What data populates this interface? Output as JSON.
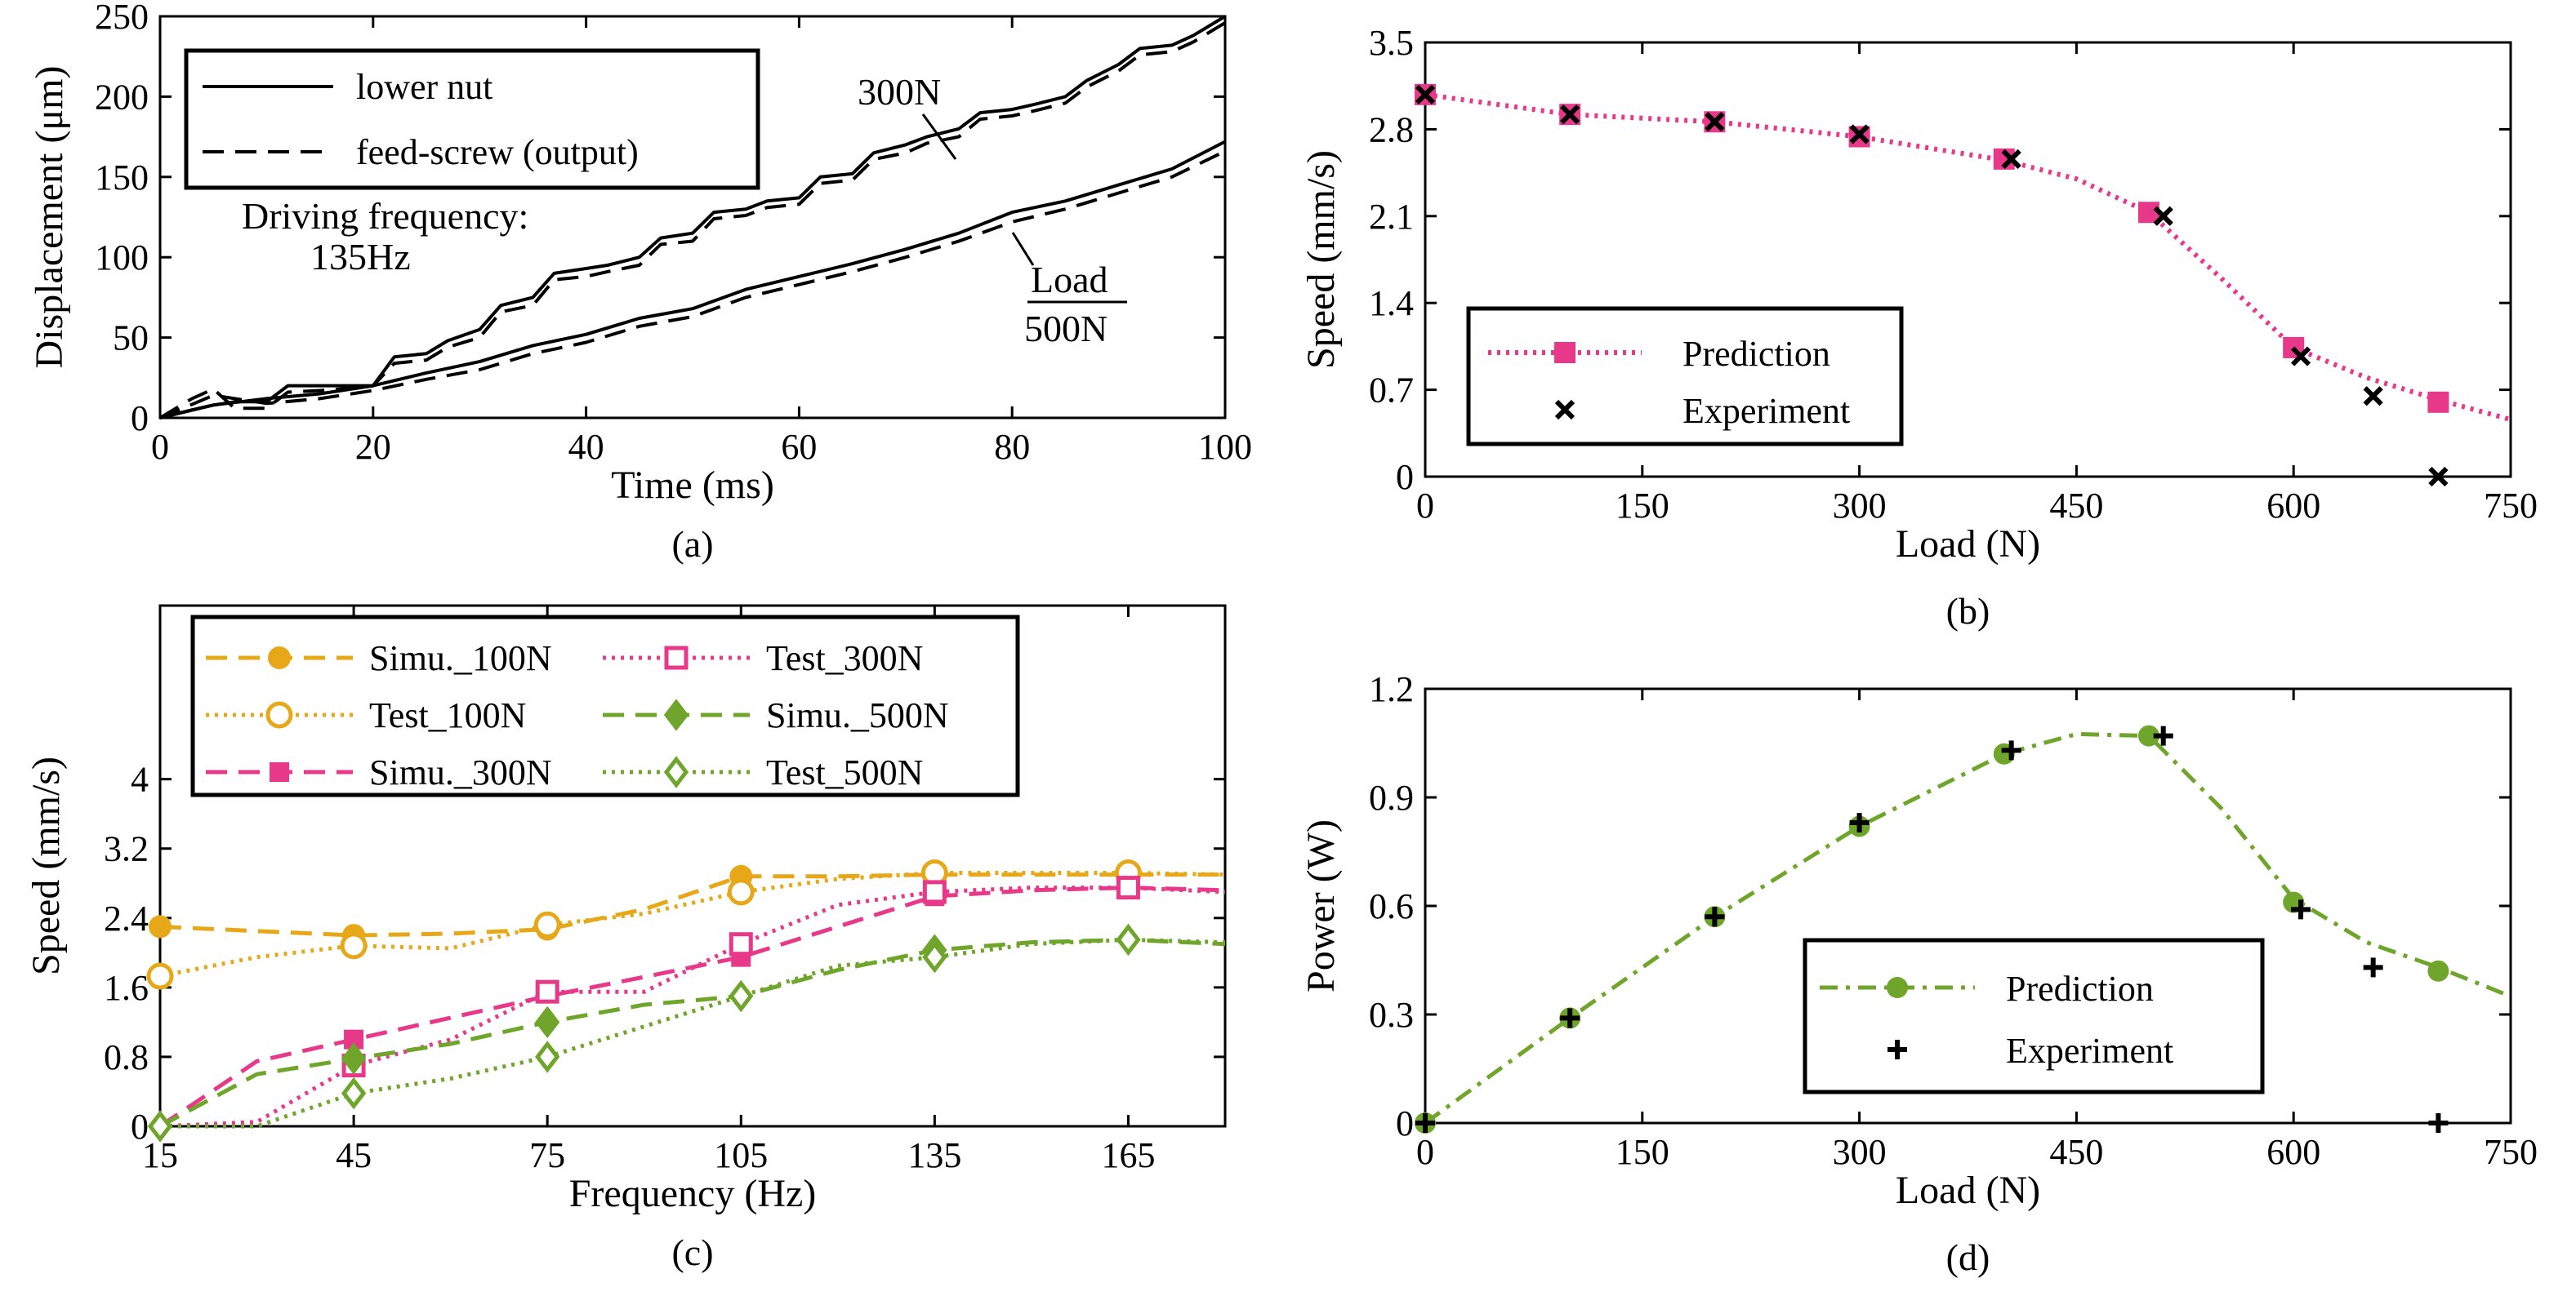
{
  "chart_data": [
    {
      "id": "a",
      "type": "line",
      "caption": "(a)",
      "xlabel": "Time (ms)",
      "ylabel": "Displacement (μm)",
      "xlim": [
        0,
        100
      ],
      "ylim": [
        0,
        250
      ],
      "xticks": [
        0,
        20,
        40,
        60,
        80,
        100
      ],
      "yticks": [
        0,
        50,
        100,
        150,
        200,
        250
      ],
      "legend_position": "top-left",
      "legend": [
        "lower nut",
        "feed-screw (output)"
      ],
      "annotations": {
        "driving_line1": "Driving frequency:",
        "driving_line2": "135Hz",
        "load300": "300N",
        "load500_top": "Load",
        "load500_bottom": "500N"
      },
      "series": [
        {
          "name": "lower nut @ 300N",
          "style": "solid",
          "x": [
            0,
            3,
            5,
            7,
            10,
            12,
            15,
            17,
            20,
            22,
            25,
            27,
            30,
            32,
            35,
            37,
            40,
            42,
            45,
            47,
            50,
            52,
            55,
            57,
            60,
            62,
            65,
            67,
            70,
            72,
            75,
            77,
            80,
            82,
            85,
            87,
            90,
            92,
            95,
            97,
            100
          ],
          "values": [
            0,
            5,
            8,
            10,
            10,
            20,
            20,
            20,
            20,
            38,
            40,
            48,
            55,
            70,
            75,
            90,
            93,
            95,
            100,
            112,
            115,
            128,
            130,
            135,
            137,
            150,
            152,
            165,
            170,
            175,
            180,
            190,
            192,
            195,
            200,
            210,
            220,
            230,
            232,
            238,
            250
          ]
        },
        {
          "name": "feed-screw @ 300N",
          "style": "dashed",
          "x": [
            0,
            3,
            5,
            7,
            10,
            12,
            15,
            17,
            20,
            22,
            25,
            27,
            30,
            32,
            35,
            37,
            40,
            42,
            45,
            47,
            50,
            52,
            55,
            57,
            60,
            62,
            65,
            67,
            70,
            72,
            75,
            77,
            80,
            82,
            85,
            87,
            90,
            92,
            95,
            97,
            100
          ],
          "values": [
            0,
            12,
            18,
            6,
            6,
            16,
            17,
            18,
            20,
            34,
            36,
            44,
            50,
            66,
            70,
            86,
            88,
            91,
            95,
            108,
            110,
            124,
            126,
            131,
            133,
            146,
            148,
            161,
            165,
            171,
            175,
            186,
            188,
            191,
            196,
            206,
            216,
            226,
            228,
            234,
            246
          ]
        },
        {
          "name": "lower nut @ 500N",
          "style": "solid",
          "x": [
            0,
            5,
            10,
            15,
            20,
            25,
            30,
            35,
            40,
            45,
            50,
            55,
            60,
            65,
            70,
            75,
            80,
            85,
            90,
            95,
            100
          ],
          "values": [
            0,
            8,
            12,
            15,
            20,
            28,
            35,
            45,
            52,
            62,
            68,
            80,
            88,
            96,
            105,
            115,
            128,
            135,
            145,
            155,
            172
          ]
        },
        {
          "name": "feed-screw @ 500N",
          "style": "dashed",
          "x": [
            0,
            5,
            10,
            15,
            20,
            25,
            30,
            35,
            40,
            45,
            50,
            55,
            60,
            65,
            70,
            75,
            80,
            85,
            90,
            95,
            100
          ],
          "values": [
            0,
            14,
            9,
            12,
            17,
            24,
            30,
            40,
            47,
            57,
            63,
            75,
            83,
            91,
            100,
            110,
            122,
            130,
            140,
            150,
            166
          ]
        }
      ]
    },
    {
      "id": "b",
      "type": "line",
      "caption": "(b)",
      "xlabel": "Load (N)",
      "ylabel": "Speed (mm/s)",
      "xlim": [
        0,
        750
      ],
      "ylim": [
        0,
        3.5
      ],
      "xticks": [
        "0",
        "150",
        "300",
        "450",
        "600",
        "750"
      ],
      "yticks": [
        "0",
        "0.7",
        "1.4",
        "2.1",
        "2.8",
        "3.5"
      ],
      "legend_position": "bottom-left",
      "series": [
        {
          "name": "Prediction",
          "color": "#E8388A",
          "style": "dotted",
          "marker": "square",
          "curve_x": [
            0,
            100,
            200,
            300,
            400,
            450,
            500,
            550,
            600,
            650,
            700,
            750
          ],
          "curve_y": [
            3.08,
            2.92,
            2.86,
            2.74,
            2.55,
            2.4,
            2.13,
            1.6,
            1.04,
            0.8,
            0.62,
            0.46
          ],
          "marker_x": [
            0,
            100,
            200,
            300,
            400,
            500,
            600,
            700
          ],
          "marker_y": [
            3.08,
            2.92,
            2.86,
            2.74,
            2.56,
            2.13,
            1.04,
            0.6
          ]
        },
        {
          "name": "Experiment",
          "color": "#000000",
          "marker": "x",
          "x": [
            0,
            100,
            200,
            300,
            405,
            510,
            605,
            655,
            700
          ],
          "values": [
            3.08,
            2.92,
            2.86,
            2.76,
            2.56,
            2.1,
            0.97,
            0.65,
            0.0
          ]
        }
      ]
    },
    {
      "id": "c",
      "type": "line",
      "caption": "(c)",
      "xlabel": "Frequency (Hz)",
      "ylabel": "Speed (mm/s)",
      "xlim": [
        15,
        180
      ],
      "ylim": [
        0,
        6
      ],
      "xticks": [
        "15",
        "45",
        "75",
        "105",
        "135",
        "165"
      ],
      "yticks": [
        "0",
        "0.8",
        "1.6",
        "2.4",
        "3.2",
        "4"
      ],
      "legend_position": "top",
      "series": [
        {
          "name": "Simu._100N",
          "color": "#E6A818",
          "style": "dashed",
          "marker": "circle-filled",
          "curve_x": [
            15,
            30,
            45,
            60,
            75,
            90,
            105,
            120,
            135,
            150,
            165,
            180
          ],
          "curve_y": [
            2.3,
            2.25,
            2.2,
            2.22,
            2.27,
            2.5,
            2.88,
            2.88,
            2.9,
            2.9,
            2.9,
            2.9
          ],
          "marker_x": [
            15,
            45,
            75,
            105
          ],
          "marker_y": [
            2.3,
            2.2,
            2.27,
            2.88
          ]
        },
        {
          "name": "Test_100N",
          "color": "#E6A818",
          "style": "dotted",
          "marker": "circle-open",
          "curve_x": [
            15,
            30,
            45,
            60,
            75,
            90,
            105,
            120,
            135,
            150,
            165,
            180
          ],
          "curve_y": [
            1.73,
            1.95,
            2.08,
            2.05,
            2.32,
            2.45,
            2.7,
            2.85,
            2.92,
            2.92,
            2.92,
            2.9
          ],
          "marker_x": [
            15,
            45,
            75,
            105,
            135,
            165
          ],
          "marker_y": [
            1.73,
            2.08,
            2.32,
            2.7,
            2.92,
            2.92
          ]
        },
        {
          "name": "Simu._300N",
          "color": "#E8388A",
          "style": "dashed",
          "marker": "square-filled",
          "curve_x": [
            15,
            30,
            45,
            60,
            75,
            90,
            105,
            120,
            135,
            150,
            165,
            180
          ],
          "curve_y": [
            0.0,
            0.75,
            1.0,
            1.25,
            1.5,
            1.72,
            1.95,
            2.3,
            2.65,
            2.72,
            2.75,
            2.72
          ],
          "marker_x": [
            45,
            105,
            135
          ],
          "marker_y": [
            1.0,
            1.95,
            2.65
          ]
        },
        {
          "name": "Test_300N",
          "color": "#E8388A",
          "style": "dotted",
          "marker": "square-open",
          "curve_x": [
            15,
            30,
            45,
            60,
            75,
            90,
            105,
            120,
            135,
            150,
            165,
            180
          ],
          "curve_y": [
            0.0,
            0.05,
            0.7,
            1.0,
            1.55,
            1.55,
            2.1,
            2.55,
            2.7,
            2.75,
            2.75,
            2.7
          ],
          "marker_x": [
            45,
            75,
            105,
            135,
            165
          ],
          "marker_y": [
            0.7,
            1.55,
            2.1,
            2.7,
            2.75
          ]
        },
        {
          "name": "Simu._500N",
          "color": "#6FA52A",
          "style": "dashed",
          "marker": "diamond-filled",
          "curve_x": [
            15,
            30,
            45,
            60,
            75,
            90,
            105,
            120,
            135,
            150,
            165,
            180
          ],
          "curve_y": [
            0.0,
            0.6,
            0.78,
            0.95,
            1.2,
            1.4,
            1.5,
            1.8,
            2.03,
            2.12,
            2.15,
            2.1
          ],
          "marker_x": [
            45,
            75,
            135
          ],
          "marker_y": [
            0.78,
            1.2,
            2.03
          ]
        },
        {
          "name": "Test_500N",
          "color": "#6FA52A",
          "style": "dotted",
          "marker": "diamond-open",
          "curve_x": [
            15,
            30,
            45,
            60,
            75,
            90,
            105,
            120,
            135,
            150,
            165,
            180
          ],
          "curve_y": [
            0.0,
            0.0,
            0.38,
            0.55,
            0.8,
            1.15,
            1.5,
            1.85,
            1.95,
            2.1,
            2.15,
            2.12
          ],
          "marker_x": [
            15,
            45,
            75,
            105,
            135,
            165
          ],
          "marker_y": [
            0.0,
            0.38,
            0.8,
            1.5,
            1.95,
            2.15
          ]
        }
      ]
    },
    {
      "id": "d",
      "type": "line",
      "caption": "(d)",
      "xlabel": "Load (N)",
      "ylabel": "Power (W)",
      "xlim": [
        0,
        750
      ],
      "ylim": [
        0,
        1.2
      ],
      "xticks": [
        "0",
        "150",
        "300",
        "450",
        "600",
        "750"
      ],
      "yticks": [
        "0",
        "0.3",
        "0.6",
        "0.9",
        "1.2"
      ],
      "legend_position": "bottom-right",
      "series": [
        {
          "name": "Prediction",
          "color": "#6FA52A",
          "style": "dashdot",
          "marker": "circle",
          "curve_x": [
            0,
            100,
            200,
            300,
            400,
            450,
            500,
            550,
            600,
            650,
            700,
            750
          ],
          "curve_y": [
            0.0,
            0.29,
            0.57,
            0.82,
            1.02,
            1.075,
            1.07,
            0.87,
            0.62,
            0.5,
            0.43,
            0.35
          ],
          "marker_x": [
            0,
            100,
            200,
            300,
            400,
            500,
            600,
            700
          ],
          "marker_y": [
            0.0,
            0.29,
            0.57,
            0.82,
            1.02,
            1.07,
            0.61,
            0.42
          ]
        },
        {
          "name": "Experiment",
          "color": "#000000",
          "marker": "plus",
          "x": [
            0,
            100,
            200,
            300,
            405,
            510,
            605,
            655,
            700
          ],
          "values": [
            0.0,
            0.29,
            0.57,
            0.83,
            1.03,
            1.07,
            0.59,
            0.43,
            0.0
          ]
        }
      ]
    }
  ]
}
